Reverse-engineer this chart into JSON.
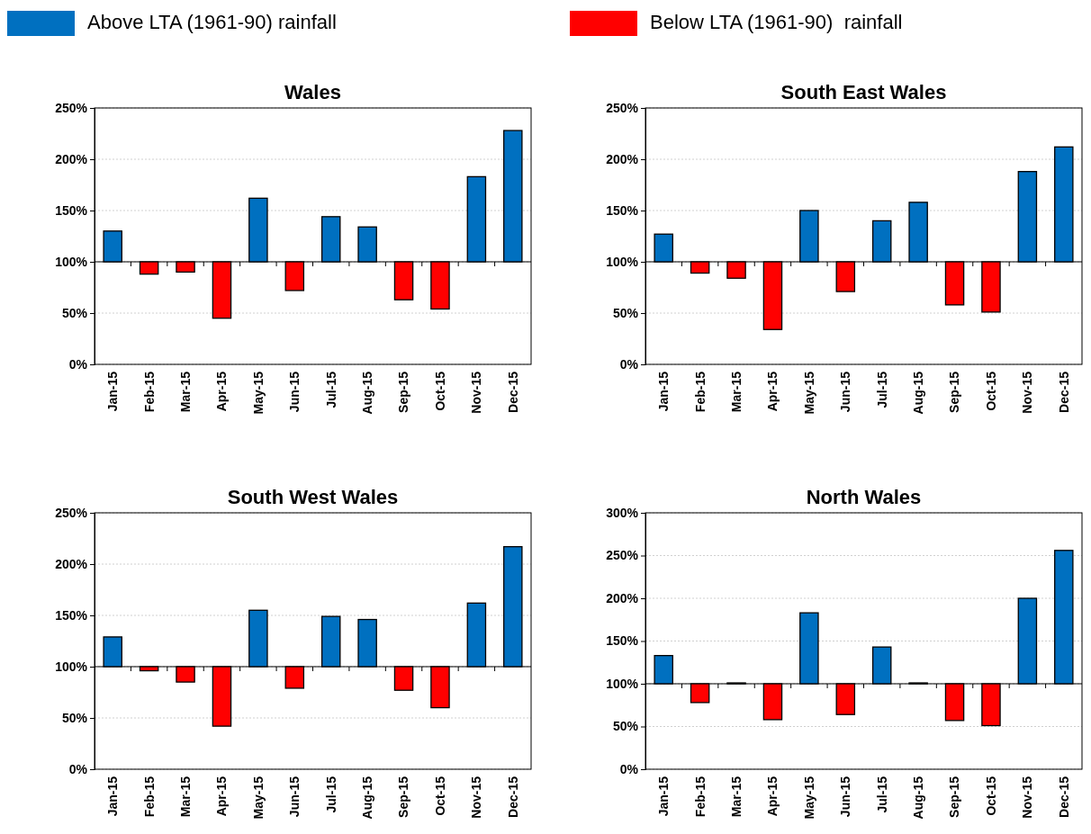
{
  "chart_data": [
    {
      "type": "bar",
      "title": "Wales",
      "categories": [
        "Jan-15",
        "Feb-15",
        "Mar-15",
        "Apr-15",
        "May-15",
        "Jun-15",
        "Jul-15",
        "Aug-15",
        "Sep-15",
        "Oct-15",
        "Nov-15",
        "Dec-15"
      ],
      "series": [
        {
          "name": "Above LTA (1961-90) rainfall",
          "color": "#0070c0",
          "base": [
            100,
            null,
            null,
            null,
            100,
            null,
            100,
            100,
            null,
            null,
            100,
            100
          ],
          "values": [
            30,
            null,
            null,
            null,
            62,
            null,
            44,
            34,
            null,
            null,
            83,
            128
          ]
        },
        {
          "name": "Below LTA (1961-90)  rainfall",
          "color": "#ff0000",
          "base": [
            null,
            100,
            100,
            100,
            null,
            100,
            null,
            null,
            100,
            100,
            null,
            null
          ],
          "values": [
            null,
            -12,
            -10,
            -55,
            null,
            -28,
            null,
            null,
            -37,
            -46,
            null,
            null
          ]
        }
      ],
      "ylim": [
        0,
        250
      ],
      "yticks": [
        {
          "value": 0,
          "label": "0%"
        },
        {
          "value": 50,
          "label": "50%"
        },
        {
          "value": 100,
          "label": "100%"
        },
        {
          "value": 150,
          "label": "150%"
        },
        {
          "value": 200,
          "label": "200%"
        },
        {
          "value": 250,
          "label": "250%"
        }
      ],
      "grid": "y",
      "legend": "top",
      "ref_lines": [
        {
          "axis": "y",
          "value": 100,
          "color": "#000000"
        }
      ]
    },
    {
      "type": "bar",
      "title": "South East Wales",
      "categories": [
        "Jan-15",
        "Feb-15",
        "Mar-15",
        "Apr-15",
        "May-15",
        "Jun-15",
        "Jul-15",
        "Aug-15",
        "Sep-15",
        "Oct-15",
        "Nov-15",
        "Dec-15"
      ],
      "series": [
        {
          "color": "#0070c0",
          "base": [
            100,
            null,
            null,
            null,
            100,
            null,
            100,
            100,
            null,
            null,
            100,
            100
          ],
          "values": [
            27,
            null,
            null,
            null,
            50,
            null,
            40,
            58,
            null,
            null,
            88,
            112
          ]
        },
        {
          "color": "#ff0000",
          "base": [
            null,
            100,
            100,
            100,
            null,
            100,
            null,
            null,
            100,
            100,
            null,
            null
          ],
          "values": [
            null,
            -11,
            -16,
            -66,
            null,
            -29,
            null,
            null,
            -42,
            -49,
            null,
            null
          ]
        }
      ],
      "ylim": [
        0,
        250
      ],
      "yticks": [
        {
          "value": 0,
          "label": "0%"
        },
        {
          "value": 50,
          "label": "50%"
        },
        {
          "value": 100,
          "label": "100%"
        },
        {
          "value": 150,
          "label": "150%"
        },
        {
          "value": 200,
          "label": "200%"
        },
        {
          "value": 250,
          "label": "250%"
        }
      ],
      "grid": "y",
      "ref_lines": [
        {
          "axis": "y",
          "value": 100,
          "color": "#000000"
        }
      ]
    },
    {
      "type": "bar",
      "title": "South West Wales",
      "categories": [
        "Jan-15",
        "Feb-15",
        "Mar-15",
        "Apr-15",
        "May-15",
        "Jun-15",
        "Jul-15",
        "Aug-15",
        "Sep-15",
        "Oct-15",
        "Nov-15",
        "Dec-15"
      ],
      "series": [
        {
          "color": "#0070c0",
          "base": [
            100,
            null,
            null,
            null,
            100,
            null,
            100,
            100,
            null,
            null,
            100,
            100
          ],
          "values": [
            29,
            null,
            null,
            null,
            55,
            null,
            49,
            46,
            null,
            null,
            62,
            117
          ]
        },
        {
          "color": "#ff0000",
          "base": [
            null,
            100,
            100,
            100,
            null,
            100,
            null,
            null,
            100,
            100,
            null,
            null
          ],
          "values": [
            null,
            -4,
            -15,
            -58,
            null,
            -21,
            null,
            null,
            -23,
            -40,
            null,
            null
          ]
        }
      ],
      "ylim": [
        0,
        250
      ],
      "yticks": [
        {
          "value": 0,
          "label": "0%"
        },
        {
          "value": 50,
          "label": "50%"
        },
        {
          "value": 100,
          "label": "100%"
        },
        {
          "value": 150,
          "label": "150%"
        },
        {
          "value": 200,
          "label": "200%"
        },
        {
          "value": 250,
          "label": "250%"
        }
      ],
      "grid": "y",
      "ref_lines": [
        {
          "axis": "y",
          "value": 100,
          "color": "#000000"
        }
      ]
    },
    {
      "type": "bar",
      "title": "North Wales",
      "categories": [
        "Jan-15",
        "Feb-15",
        "Mar-15",
        "Apr-15",
        "May-15",
        "Jun-15",
        "Jul-15",
        "Aug-15",
        "Sep-15",
        "Oct-15",
        "Nov-15",
        "Dec-15"
      ],
      "series": [
        {
          "color": "#0070c0",
          "base": [
            100,
            null,
            100,
            null,
            100,
            null,
            100,
            100,
            null,
            null,
            100,
            100
          ],
          "values": [
            33,
            null,
            1,
            null,
            83,
            null,
            43,
            1,
            null,
            null,
            100,
            156
          ]
        },
        {
          "color": "#ff0000",
          "base": [
            null,
            100,
            null,
            100,
            null,
            100,
            null,
            null,
            100,
            100,
            null,
            null
          ],
          "values": [
            null,
            -22,
            null,
            -42,
            null,
            -36,
            null,
            null,
            -43,
            -49,
            null,
            null
          ]
        }
      ],
      "ylim": [
        0,
        300
      ],
      "yticks": [
        {
          "value": 0,
          "label": "0%"
        },
        {
          "value": 50,
          "label": "50%"
        },
        {
          "value": 100,
          "label": "100%"
        },
        {
          "value": 150,
          "label": "150%"
        },
        {
          "value": 200,
          "label": "200%"
        },
        {
          "value": 250,
          "label": "250%"
        },
        {
          "value": 300,
          "label": "300%"
        }
      ],
      "grid": "y",
      "ref_lines": [
        {
          "axis": "y",
          "value": 100,
          "color": "#000000"
        }
      ]
    }
  ]
}
